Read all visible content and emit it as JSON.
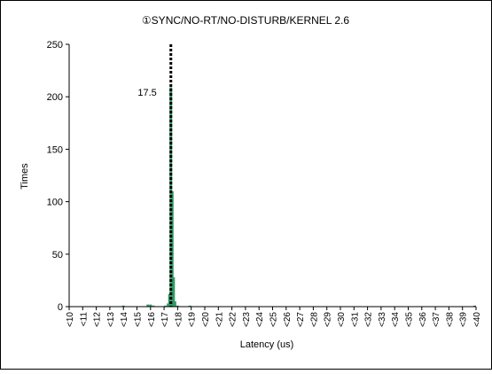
{
  "chart_data": {
    "type": "bar",
    "title": "①SYNC/NO-RT/NO-DISTURB/KERNEL 2.6",
    "xlabel": "Latency (us)",
    "ylabel": "Times",
    "ylim": [
      0,
      250
    ],
    "yticks": [
      "0",
      "50",
      "100",
      "150",
      "200",
      "250"
    ],
    "x_range": [
      10,
      40
    ],
    "categories": [
      "<10",
      "<11",
      "<12",
      "<13",
      "<14",
      "<15",
      "<16",
      "<17",
      "<18",
      "<19",
      "<20",
      "<21",
      "<22",
      "<23",
      "<24",
      "<25",
      "<26",
      "<27",
      "<28",
      "<29",
      "<30",
      "<31",
      "<32",
      "<33",
      "<34",
      "<35",
      "<36",
      "<37",
      "<38",
      "<39",
      "<40"
    ],
    "bar_color": "#339966",
    "bars": [
      {
        "x": 14.0,
        "value": 1
      },
      {
        "x": 15.8,
        "value": 2
      },
      {
        "x": 16.0,
        "value": 2
      },
      {
        "x": 16.2,
        "value": 1
      },
      {
        "x": 17.1,
        "value": 1
      },
      {
        "x": 17.3,
        "value": 3
      },
      {
        "x": 17.4,
        "value": 12
      },
      {
        "x": 17.5,
        "value": 209
      },
      {
        "x": 17.6,
        "value": 110
      },
      {
        "x": 17.7,
        "value": 28
      },
      {
        "x": 17.8,
        "value": 5
      },
      {
        "x": 18.0,
        "value": 1
      },
      {
        "x": 18.9,
        "value": 1
      },
      {
        "x": 39.9,
        "value": 1
      }
    ],
    "reference_line": {
      "x": 17.5,
      "label": "17.5"
    },
    "grid": false,
    "legend": "none"
  }
}
